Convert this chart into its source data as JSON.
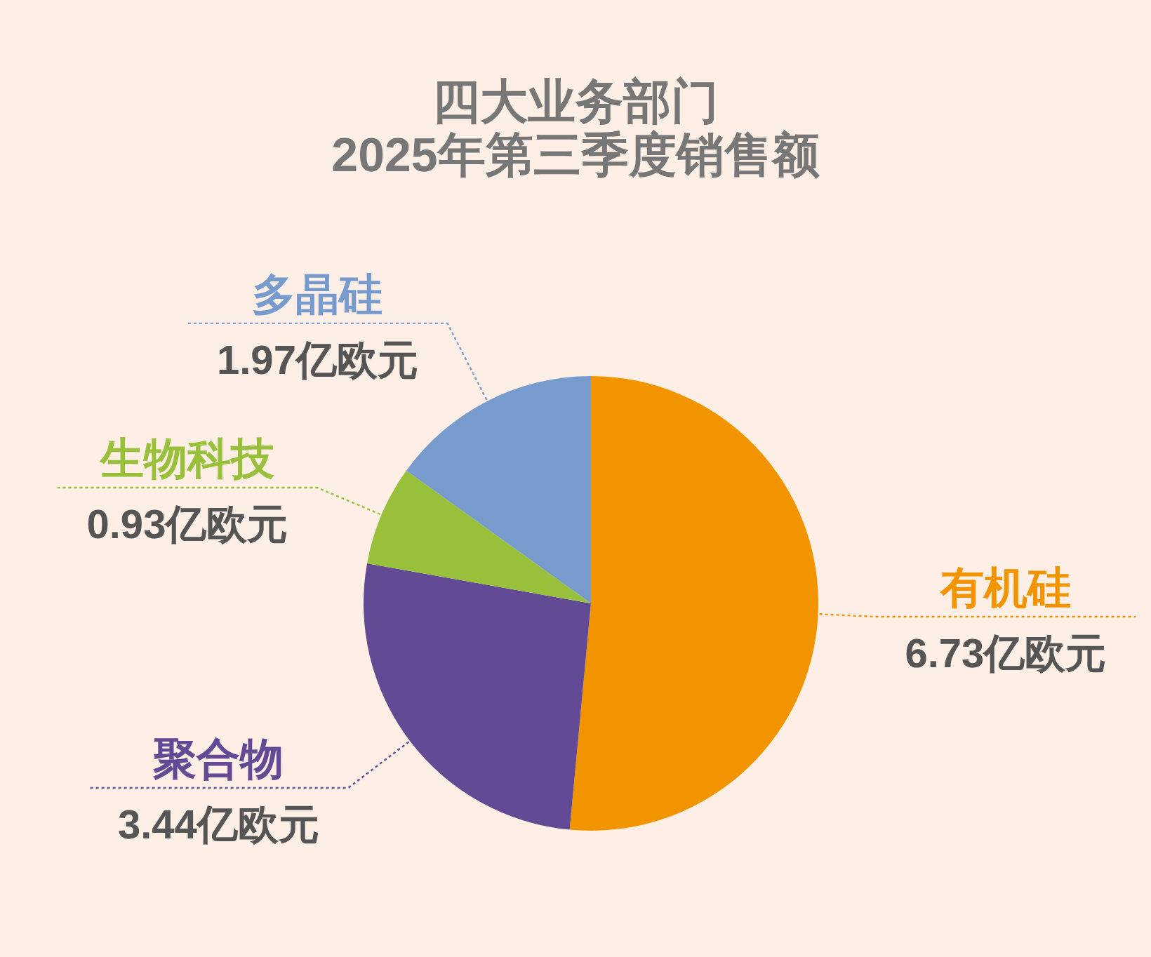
{
  "chart_data": {
    "type": "pie",
    "title": "四大业务部门\n2025年第三季度销售额",
    "categories": [
      "有机硅",
      "聚合物",
      "生物科技",
      "多晶硅"
    ],
    "values": [
      6.73,
      3.44,
      0.93,
      1.97
    ],
    "colors": [
      "#f29400",
      "#634a94",
      "#98c03b",
      "#789bcd"
    ],
    "value_labels": [
      "6.73亿欧元",
      "3.44亿欧元",
      "0.93亿欧元",
      "1.97亿欧元"
    ]
  }
}
